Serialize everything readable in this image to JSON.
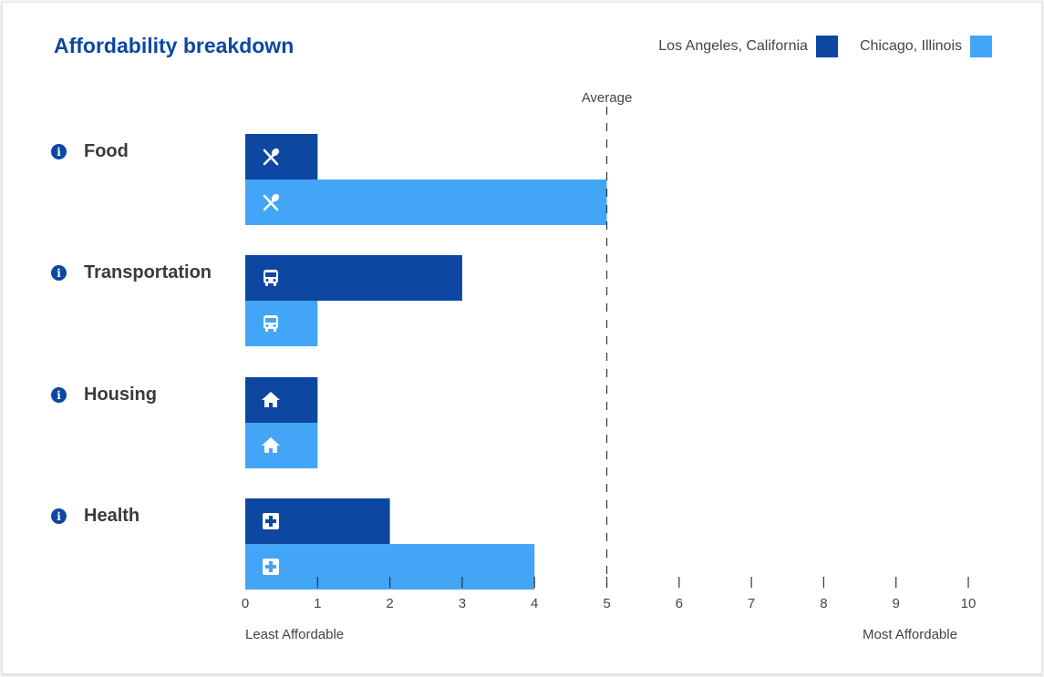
{
  "title": "Affordability breakdown",
  "legend": [
    {
      "label": "Los Angeles, California",
      "color": "#0d47a1"
    },
    {
      "label": "Chicago, Illinois",
      "color": "#42a5f5"
    }
  ],
  "average_label": "Average",
  "x_min_label": "Least Affordable",
  "x_max_label": "Most Affordable",
  "categories": [
    {
      "label": "Food",
      "icon": "fork-knife-icon"
    },
    {
      "label": "Transportation",
      "icon": "bus-icon"
    },
    {
      "label": "Housing",
      "icon": "home-icon"
    },
    {
      "label": "Health",
      "icon": "medical-cross-icon"
    }
  ],
  "info_icon": "info-icon",
  "chart_data": {
    "type": "bar",
    "orientation": "horizontal",
    "title": "Affordability breakdown",
    "categories": [
      "Food",
      "Transportation",
      "Housing",
      "Health"
    ],
    "series": [
      {
        "name": "Los Angeles, California",
        "values": [
          1,
          3,
          1,
          2
        ],
        "color": "#0d47a1"
      },
      {
        "name": "Chicago, Illinois",
        "values": [
          5,
          1,
          1,
          4
        ],
        "color": "#42a5f5"
      }
    ],
    "xlim": [
      0,
      10
    ],
    "xticks": [
      0,
      1,
      2,
      3,
      4,
      5,
      6,
      7,
      8,
      9,
      10
    ],
    "reference_line": {
      "value": 5,
      "label": "Average",
      "style": "dashed"
    },
    "legend_position": "top-right",
    "grid": false
  }
}
